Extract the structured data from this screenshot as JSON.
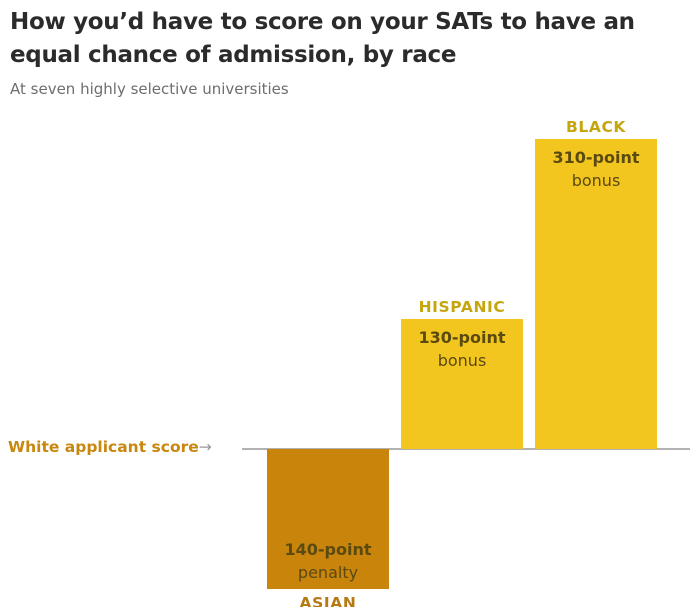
{
  "title": "How you’d have to score on your SATs to have an equal chance of admission, by race",
  "subtitle": "At seven highly selective universities",
  "colors": {
    "bonus_bar": "#f3c51f",
    "penalty_bar": "#c8840b",
    "bonus_label": "#c6a60f",
    "penalty_label": "#b67a12",
    "reference_label": "#c8870e",
    "value_text": "#5a4a10",
    "baseline": "#999999"
  },
  "chart_data": {
    "type": "bar",
    "title": "How you’d have to score on your SATs to have an equal chance of admission, by race",
    "subtitle": "At seven highly selective universities",
    "baseline_label": "White applicant score",
    "categories": [
      "ASIAN",
      "HISPANIC",
      "BLACK"
    ],
    "values": [
      -140,
      130,
      310
    ],
    "bar_labels": [
      {
        "amount": "140-point",
        "kind": "penalty"
      },
      {
        "amount": "130-point",
        "kind": "bonus"
      },
      {
        "amount": "310-point",
        "kind": "bonus"
      }
    ],
    "xlabel": "",
    "ylabel": "",
    "ylim": [
      -140,
      310
    ],
    "grid": false
  }
}
